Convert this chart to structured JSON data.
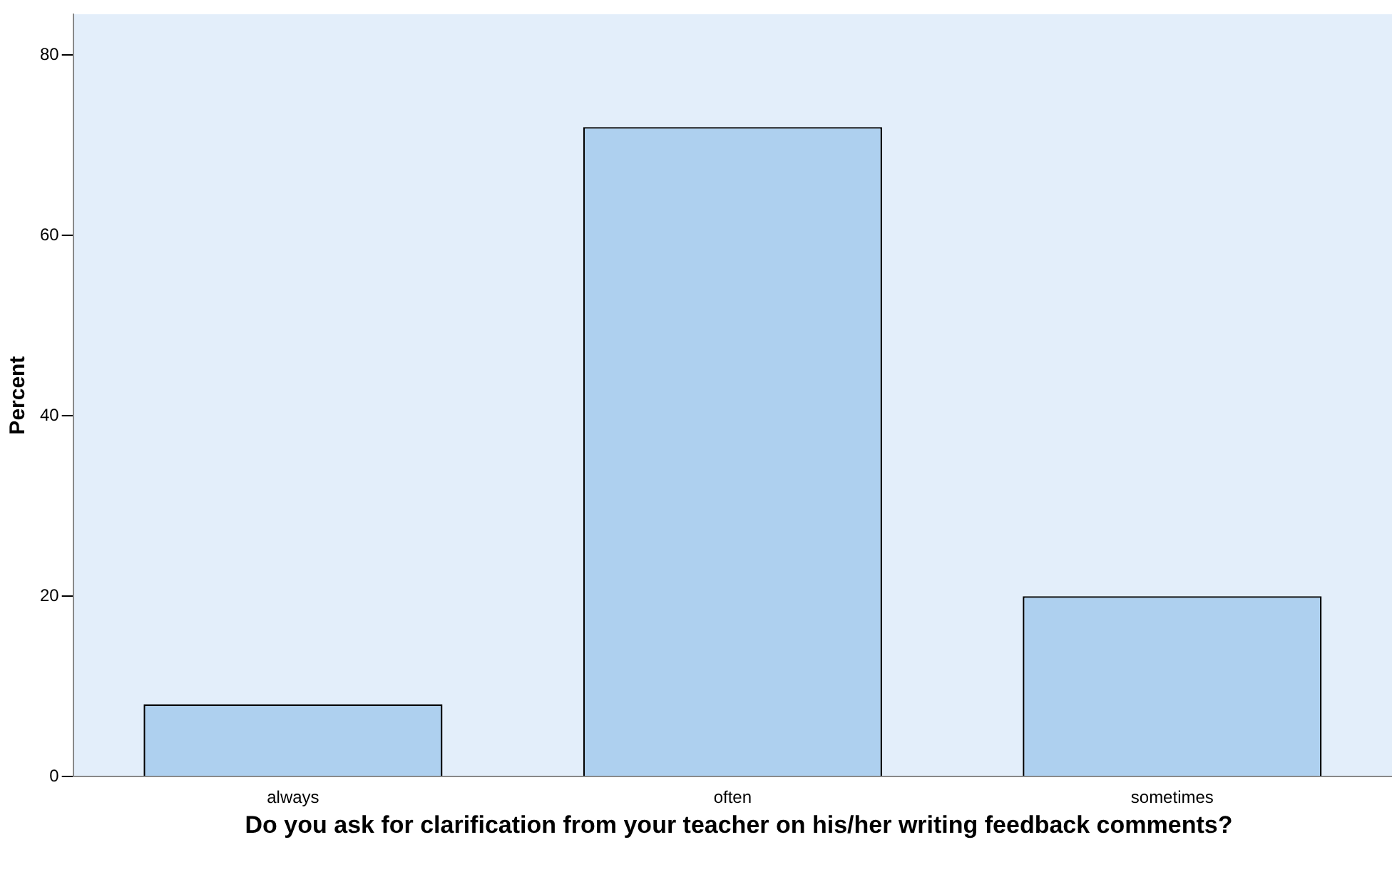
{
  "chart_data": {
    "type": "bar",
    "xlabel": "Do you ask for clarification from your teacher on his/her writing feedback comments?",
    "ylabel": "Percent",
    "categories": [
      "always",
      "often",
      "sometimes"
    ],
    "values": [
      8,
      72,
      20
    ],
    "color": "#aed0ef",
    "ylim": [
      0,
      84.5
    ],
    "yticks": [
      0,
      20,
      40,
      60,
      80
    ],
    "grid": false,
    "legend": false
  }
}
